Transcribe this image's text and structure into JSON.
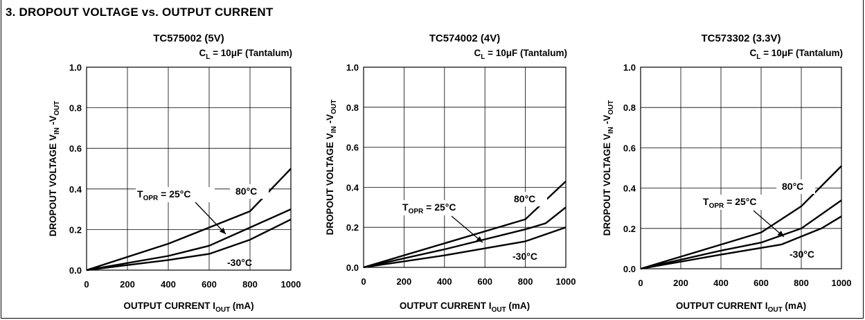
{
  "section_title": "3. DROPOUT VOLTAGE vs.  OUTPUT CURRENT",
  "chart_data": [
    {
      "type": "line",
      "title": "TC575002 (5V)",
      "condition": {
        "main": "C",
        "sub": "L",
        "rest": " = 10μF (Tantalum)"
      },
      "xlabel": {
        "main": "OUTPUT CURRENT I",
        "sub": "OUT",
        "rest": " (mA)"
      },
      "ylabel": {
        "main": "DROPOUT  VOLTAGE V",
        "sub1": "IN",
        "mid": " -V",
        "sub2": "OUT"
      },
      "xlim": [
        0,
        1000
      ],
      "ylim": [
        0,
        1.0
      ],
      "xticks": [
        "0",
        "200",
        "400",
        "600",
        "800",
        "1000"
      ],
      "yticks": [
        "0.0",
        "0.2",
        "0.4",
        "0.6",
        "0.8",
        "1.0"
      ],
      "grid": true,
      "series": [
        {
          "name": "80°C",
          "x": [
            0,
            400,
            800,
            1000
          ],
          "y": [
            0.0,
            0.13,
            0.29,
            0.5
          ]
        },
        {
          "name": "25°C",
          "x": [
            0,
            400,
            600,
            800,
            1000
          ],
          "y": [
            0.0,
            0.07,
            0.12,
            0.21,
            0.3
          ]
        },
        {
          "name": "-30°C",
          "x": [
            0,
            400,
            600,
            800,
            900,
            1000
          ],
          "y": [
            0.0,
            0.05,
            0.08,
            0.15,
            0.2,
            0.25
          ]
        }
      ],
      "annotations": {
        "topr_main": "T",
        "topr_sub": "OPR",
        "topr_rest": " = 25°C",
        "high": "80°C",
        "low": "-30°C"
      }
    },
    {
      "type": "line",
      "title": "TC574002 (4V)",
      "condition": {
        "main": "C",
        "sub": "L",
        "rest": " = 10μF (Tantalum)"
      },
      "xlabel": {
        "main": "OUTPUT CURRENT I",
        "sub": "OUT",
        "rest": " (mA)"
      },
      "ylabel": {
        "main": "DROPOUT  VOLTAGE V",
        "sub1": "IN",
        "mid": " -V",
        "sub2": "OUT"
      },
      "xlim": [
        0,
        1000
      ],
      "ylim": [
        0,
        1.0
      ],
      "xticks": [
        "0",
        "200",
        "400",
        "600",
        "800",
        "1000"
      ],
      "yticks": [
        "0.0",
        "0.2",
        "0.4",
        "0.6",
        "0.8",
        "1.0"
      ],
      "grid": true,
      "series": [
        {
          "name": "80°C",
          "x": [
            0,
            400,
            800,
            1000
          ],
          "y": [
            0.0,
            0.12,
            0.24,
            0.43
          ]
        },
        {
          "name": "25°C",
          "x": [
            0,
            400,
            800,
            900,
            1000
          ],
          "y": [
            0.0,
            0.09,
            0.19,
            0.22,
            0.3
          ]
        },
        {
          "name": "-30°C",
          "x": [
            0,
            400,
            800,
            1000
          ],
          "y": [
            0.0,
            0.06,
            0.13,
            0.2
          ]
        }
      ],
      "annotations": {
        "topr_main": "T",
        "topr_sub": "OPR",
        "topr_rest": " = 25°C",
        "high": "80°C",
        "low": "-30°C"
      }
    },
    {
      "type": "line",
      "title": "TC573302 (3.3V)",
      "condition": {
        "main": "C",
        "sub": "L",
        "rest": " = 10μF (Tantalum)"
      },
      "xlabel": {
        "main": "OUTPUT CURRENT I",
        "sub": "OUT",
        "rest": " (mA)"
      },
      "ylabel": {
        "main": "DROPOUT  VOLTAGE V",
        "sub1": "IN",
        "mid": " -V",
        "sub2": "OUT"
      },
      "xlim": [
        0,
        1000
      ],
      "ylim": [
        0,
        1.0
      ],
      "xticks": [
        "0",
        "200",
        "400",
        "600",
        "800",
        "1000"
      ],
      "yticks": [
        "0.0",
        "0.2",
        "0.4",
        "0.6",
        "0.8",
        "1.0"
      ],
      "grid": true,
      "series": [
        {
          "name": "80°C",
          "x": [
            0,
            400,
            600,
            800,
            1000
          ],
          "y": [
            0.0,
            0.12,
            0.18,
            0.31,
            0.51
          ]
        },
        {
          "name": "25°C",
          "x": [
            0,
            400,
            600,
            800,
            1000
          ],
          "y": [
            0.0,
            0.09,
            0.13,
            0.2,
            0.34
          ]
        },
        {
          "name": "-30°C",
          "x": [
            0,
            400,
            700,
            900,
            1000
          ],
          "y": [
            0.0,
            0.07,
            0.12,
            0.2,
            0.26
          ]
        }
      ],
      "annotations": {
        "topr_main": "T",
        "topr_sub": "OPR",
        "topr_rest": " = 25°C",
        "high": "80°C",
        "low": "-30°C"
      }
    }
  ]
}
